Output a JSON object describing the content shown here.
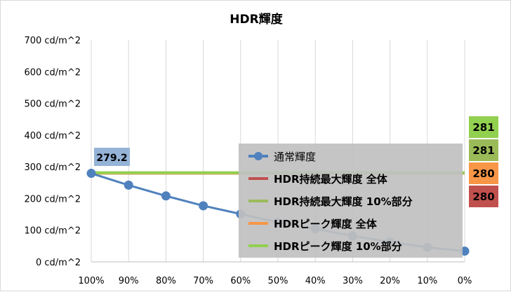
{
  "chart_data": {
    "type": "line",
    "title": "HDR輝度",
    "x": [
      "100%",
      "90%",
      "80%",
      "70%",
      "60%",
      "50%",
      "40%",
      "30%",
      "20%",
      "10%",
      "0%"
    ],
    "y_tick_labels": [
      "0 cd/m^2",
      "100 cd/m^2",
      "200 cd/m^2",
      "300 cd/m^2",
      "400 cd/m^2",
      "500 cd/m^2",
      "600 cd/m^2",
      "700 cd/m^2"
    ],
    "ylim": [
      0,
      700
    ],
    "grid": "vertical",
    "legend_position": "center-right",
    "series": [
      {
        "name": "通常輝度",
        "color": "#4f81bd",
        "marker": "circle",
        "values": [
          279.2,
          242,
          208,
          177,
          151,
          125,
          104,
          82,
          63,
          46,
          34
        ]
      },
      {
        "name": "HDR持続最大輝度 全体",
        "color": "#c0504d",
        "value": 280
      },
      {
        "name": "HDR持続最大輝度 10%部分",
        "color": "#9bbb59",
        "value": 281
      },
      {
        "name": "HDRピーク輝度 全体",
        "color": "#f79646",
        "value": 280
      },
      {
        "name": "HDRピーク輝度 10%部分",
        "color": "#92d050",
        "value": 281
      }
    ],
    "start_label": {
      "text": "279.2",
      "color": "#95b3d7"
    },
    "end_labels": [
      {
        "text": "281",
        "color": "#92d050"
      },
      {
        "text": "281",
        "color": "#9bbb59"
      },
      {
        "text": "280",
        "color": "#f79646"
      },
      {
        "text": "280",
        "color": "#c0504d"
      }
    ]
  }
}
